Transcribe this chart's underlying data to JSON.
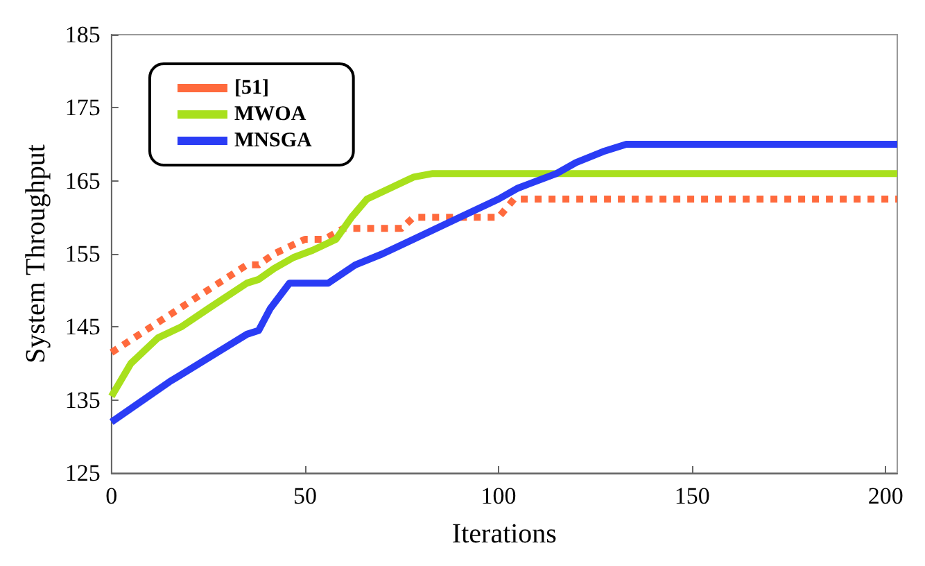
{
  "chart_data": {
    "type": "line",
    "xlabel": "Iterations",
    "ylabel": "System Throughput",
    "xlim": [
      0,
      203
    ],
    "xticks": [
      0,
      50,
      100,
      150,
      200
    ],
    "ylim": [
      125,
      185
    ],
    "yticks": [
      125,
      135,
      145,
      155,
      165,
      175,
      185
    ],
    "grid": false,
    "legend": "top left",
    "marker": "none",
    "series": [
      {
        "name": "[51]",
        "color": "#ff6a3d",
        "line_style": "dotted",
        "x": [
          0,
          35,
          38,
          42,
          50,
          55,
          60,
          75,
          78,
          100,
          104,
          203
        ],
        "values": [
          141.5,
          153.5,
          153.5,
          155,
          157,
          157,
          158.5,
          158.5,
          160,
          160,
          162.5,
          162.5
        ]
      },
      {
        "name": "MWOA",
        "color": "#a8e01c",
        "line_style": "solid",
        "x": [
          0,
          5,
          12,
          18,
          25,
          35,
          38,
          42,
          47,
          52,
          58,
          62,
          66,
          72,
          78,
          83,
          203
        ],
        "values": [
          135.5,
          140,
          143.5,
          145,
          147.5,
          151,
          151.5,
          153,
          154.5,
          155.5,
          157,
          160,
          162.5,
          164,
          165.5,
          166,
          166
        ]
      },
      {
        "name": "MNSGA",
        "color": "#2a3cf5",
        "line_style": "solid",
        "x": [
          0,
          15,
          35,
          38,
          41,
          46,
          56,
          63,
          70,
          78,
          90,
          100,
          105,
          115,
          120,
          127,
          133,
          203
        ],
        "values": [
          132,
          137.5,
          144,
          144.5,
          147.5,
          151,
          151,
          153.5,
          155,
          157,
          160,
          162.5,
          164,
          166,
          167.5,
          169,
          170,
          170
        ]
      }
    ]
  }
}
